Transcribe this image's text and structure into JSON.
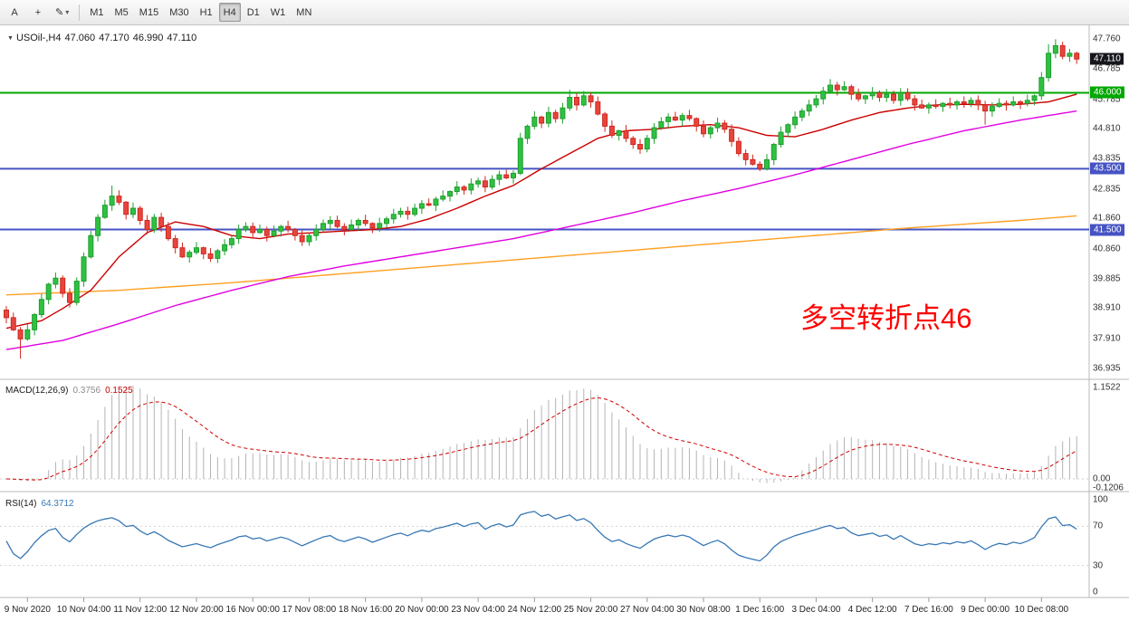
{
  "toolbar": {
    "text_tool_label": "A",
    "crosshair_tool_label": "+",
    "draw_tool_label": "✎",
    "timeframes": [
      "M1",
      "M5",
      "M15",
      "M30",
      "H1",
      "H4",
      "D1",
      "W1",
      "MN"
    ],
    "active_timeframe": "H4"
  },
  "main_chart": {
    "symbol_header": {
      "symbol": "USOil-,H4",
      "open": "47.060",
      "high": "47.170",
      "low": "46.990",
      "close": "47.110"
    },
    "annotation": {
      "text": "多空转折点46",
      "color": "#ff0000"
    },
    "price_axis_labels": [
      "47.760",
      "46.785",
      "45.785",
      "44.810",
      "43.835",
      "42.835",
      "41.860",
      "40.860",
      "39.885",
      "38.910",
      "37.910",
      "36.935"
    ],
    "price_tags": [
      {
        "value": "47.110",
        "color": "#16161d"
      },
      {
        "value": "46.000",
        "color": "#00a800"
      },
      {
        "value": "43.500",
        "color": "#4653c4"
      },
      {
        "value": "41.500",
        "color": "#4653c4"
      }
    ]
  },
  "macd_panel": {
    "label": "MACD(12,26,9)",
    "value_main": "0.3756",
    "value_signal": "0.1525",
    "axis_top": "1.1522",
    "axis_zero": "0.00",
    "axis_min": "-0.1206"
  },
  "rsi_panel": {
    "label": "RSI(14)",
    "value": "64.3712",
    "axis_labels": [
      "100",
      "70",
      "30",
      "0"
    ],
    "levels": [
      70,
      30
    ]
  },
  "time_axis": [
    "9 Nov 2020",
    "10 Nov 04:00",
    "11 Nov 12:00",
    "12 Nov 20:00",
    "16 Nov 00:00",
    "17 Nov 08:00",
    "18 Nov 16:00",
    "20 Nov 00:00",
    "23 Nov 04:00",
    "24 Nov 12:00",
    "25 Nov 20:00",
    "27 Nov 04:00",
    "30 Nov 08:00",
    "1 Dec 16:00",
    "3 Dec 04:00",
    "4 Dec 12:00",
    "7 Dec 16:00",
    "9 Dec 00:00",
    "10 Dec 08:00"
  ],
  "chart_data": {
    "type": "candlestick",
    "symbol": "USOil-",
    "timeframe": "H4",
    "quote": {
      "open": 47.06,
      "high": 47.17,
      "low": 46.99,
      "close": 47.11
    },
    "price_range": [
      36.72,
      47.98
    ],
    "hlines": [
      {
        "price": 46.0,
        "color": "#00a800",
        "width": 2
      },
      {
        "price": 43.5,
        "color": "#4653c4",
        "width": 2
      },
      {
        "price": 41.5,
        "color": "#4653c4",
        "width": 2
      }
    ],
    "closes": [
      38.6,
      38.2,
      37.9,
      38.2,
      38.7,
      39.2,
      39.7,
      39.9,
      39.4,
      39.1,
      39.8,
      40.6,
      41.3,
      41.9,
      42.3,
      42.6,
      42.4,
      42.0,
      42.2,
      41.8,
      41.5,
      41.9,
      41.6,
      41.2,
      40.9,
      40.6,
      40.75,
      40.9,
      40.7,
      40.55,
      40.8,
      41.0,
      41.2,
      41.5,
      41.6,
      41.4,
      41.5,
      41.3,
      41.45,
      41.6,
      41.5,
      41.3,
      41.1,
      41.3,
      41.5,
      41.7,
      41.8,
      41.6,
      41.5,
      41.65,
      41.8,
      41.7,
      41.55,
      41.7,
      41.85,
      42.0,
      42.1,
      42.0,
      42.2,
      42.35,
      42.3,
      42.5,
      42.6,
      42.75,
      42.9,
      42.8,
      43.0,
      43.1,
      42.9,
      43.15,
      43.3,
      43.2,
      43.35,
      44.5,
      44.9,
      45.2,
      45.0,
      45.35,
      45.15,
      45.5,
      45.85,
      45.6,
      45.9,
      45.7,
      45.3,
      44.9,
      44.6,
      44.75,
      44.5,
      44.3,
      44.15,
      44.5,
      44.85,
      45.05,
      45.2,
      45.1,
      45.25,
      45.15,
      44.9,
      44.65,
      44.85,
      45.0,
      44.8,
      44.4,
      44.0,
      43.8,
      43.65,
      43.5,
      43.8,
      44.3,
      44.7,
      44.95,
      45.2,
      45.4,
      45.6,
      45.8,
      46.05,
      46.25,
      46.1,
      46.2,
      45.95,
      45.8,
      45.9,
      46.0,
      45.85,
      45.95,
      45.75,
      46.0,
      45.8,
      45.6,
      45.5,
      45.6,
      45.55,
      45.65,
      45.6,
      45.7,
      45.65,
      45.75,
      45.6,
      45.4,
      45.55,
      45.65,
      45.6,
      45.7,
      45.65,
      45.75,
      45.9,
      46.5,
      47.3,
      47.55,
      47.2,
      47.3,
      47.11
    ],
    "wick_overrides": {
      "2": {
        "low": 37.25
      },
      "15": {
        "high": 42.95
      },
      "80": {
        "high": 46.1
      },
      "107": {
        "low": 43.42
      },
      "117": {
        "high": 46.45
      },
      "139": {
        "low": 44.95
      },
      "148": {
        "high": 47.6
      },
      "149": {
        "high": 47.76
      },
      "152": {
        "high": 47.35,
        "low": 46.95
      }
    },
    "ma_red": [
      [
        0,
        38.25
      ],
      [
        5,
        38.5
      ],
      [
        8,
        38.9
      ],
      [
        12,
        39.5
      ],
      [
        16,
        40.6
      ],
      [
        20,
        41.4
      ],
      [
        24,
        41.75
      ],
      [
        28,
        41.6
      ],
      [
        32,
        41.3
      ],
      [
        36,
        41.2
      ],
      [
        40,
        41.35
      ],
      [
        44,
        41.4
      ],
      [
        48,
        41.45
      ],
      [
        52,
        41.5
      ],
      [
        56,
        41.6
      ],
      [
        60,
        41.85
      ],
      [
        64,
        42.2
      ],
      [
        68,
        42.6
      ],
      [
        72,
        42.95
      ],
      [
        76,
        43.5
      ],
      [
        80,
        44.0
      ],
      [
        84,
        44.5
      ],
      [
        88,
        44.75
      ],
      [
        92,
        44.8
      ],
      [
        96,
        44.9
      ],
      [
        100,
        44.95
      ],
      [
        104,
        44.85
      ],
      [
        108,
        44.6
      ],
      [
        112,
        44.55
      ],
      [
        116,
        44.8
      ],
      [
        120,
        45.1
      ],
      [
        124,
        45.35
      ],
      [
        128,
        45.5
      ],
      [
        132,
        45.6
      ],
      [
        136,
        45.62
      ],
      [
        140,
        45.6
      ],
      [
        144,
        45.62
      ],
      [
        148,
        45.7
      ],
      [
        152,
        45.95
      ]
    ],
    "ma_magenta": [
      [
        0,
        37.55
      ],
      [
        8,
        37.85
      ],
      [
        16,
        38.4
      ],
      [
        24,
        39.0
      ],
      [
        32,
        39.5
      ],
      [
        40,
        39.95
      ],
      [
        48,
        40.3
      ],
      [
        56,
        40.6
      ],
      [
        64,
        40.9
      ],
      [
        72,
        41.2
      ],
      [
        80,
        41.6
      ],
      [
        88,
        42.0
      ],
      [
        96,
        42.45
      ],
      [
        104,
        42.85
      ],
      [
        112,
        43.3
      ],
      [
        120,
        43.8
      ],
      [
        128,
        44.3
      ],
      [
        136,
        44.75
      ],
      [
        144,
        45.1
      ],
      [
        152,
        45.4
      ]
    ],
    "ma_orange": [
      [
        0,
        39.35
      ],
      [
        16,
        39.5
      ],
      [
        32,
        39.75
      ],
      [
        48,
        40.05
      ],
      [
        64,
        40.35
      ],
      [
        80,
        40.65
      ],
      [
        96,
        40.95
      ],
      [
        112,
        41.25
      ],
      [
        128,
        41.55
      ],
      [
        144,
        41.8
      ],
      [
        152,
        41.95
      ]
    ],
    "colors": {
      "up": "#1f9e2e",
      "up_fill": "#2fc142",
      "down": "#cf2820",
      "down_fill": "#e8453c",
      "ma_red": "#cc0000",
      "ma_magenta": "#e100e1",
      "ma_orange": "#ffa022",
      "macd_hist": "#b4b4b4",
      "macd_signal": "#d00000",
      "rsi_line": "#3878b4"
    }
  }
}
